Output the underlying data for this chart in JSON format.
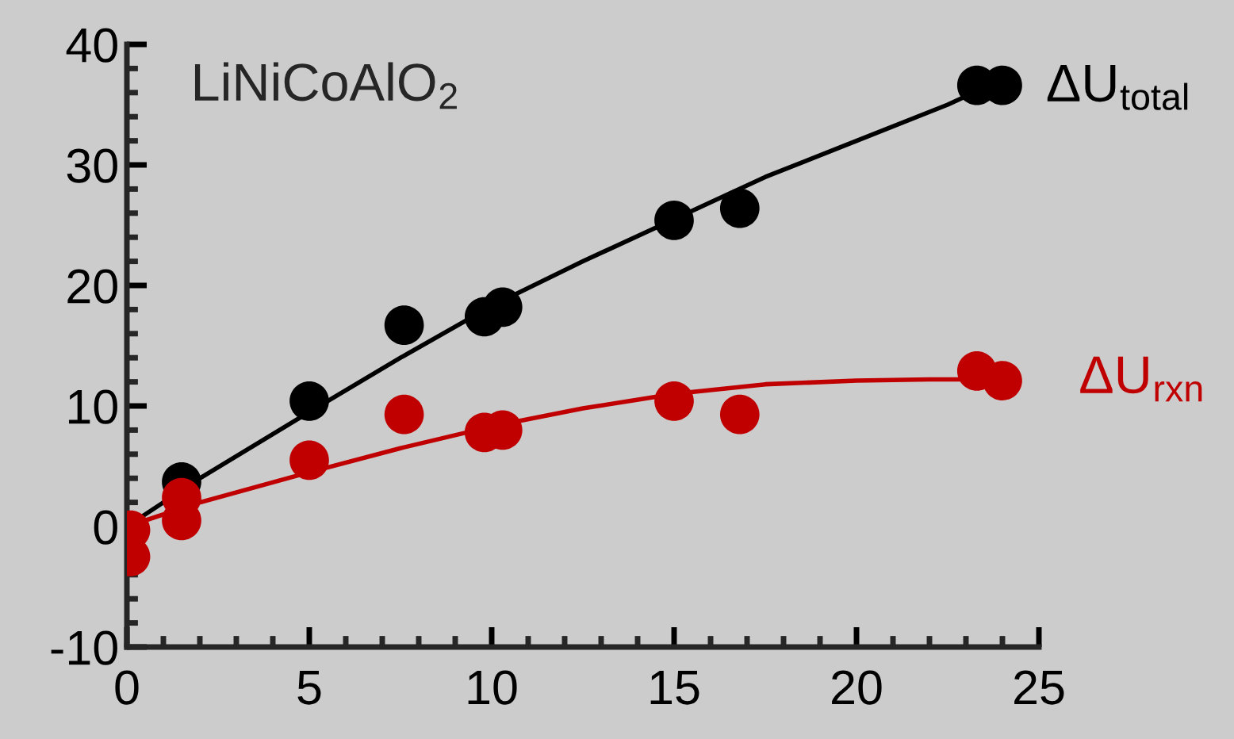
{
  "chart_data": {
    "type": "scatter",
    "title": "LiNiCoAlO$_{2}$",
    "xlim": [
      0,
      25
    ],
    "xticks": [
      0,
      5,
      10,
      15,
      20,
      25
    ],
    "ylim": [
      -10,
      40
    ],
    "yticks": [
      -10,
      0,
      10,
      20,
      30,
      40
    ],
    "marker": "circle",
    "series": [
      {
        "color": "#000000",
        "x": [
          1.5,
          5,
          7.6,
          9.8,
          10.3,
          15,
          16.8,
          23.3,
          24
        ],
        "values": [
          3.7,
          10.4,
          16.7,
          17.4,
          18.2,
          25.4,
          26.4,
          36.6,
          36.6
        ]
      },
      {
        "color": "#c00000",
        "x": [
          0.1,
          0.1,
          1.5,
          1.5,
          5,
          7.6,
          9.8,
          10.3,
          15,
          16.8,
          23.3,
          24
        ],
        "values": [
          -0.3,
          -2.5,
          2.4,
          0.5,
          5.5,
          9.3,
          7.8,
          8.0,
          10.4,
          9.3,
          12.9,
          12.1
        ]
      },
      {
        "type": "line",
        "name": "ΔU$_{total}$",
        "color": "#000000",
        "marker": "none",
        "x": [
          0,
          2,
          5,
          7.5,
          10,
          12.5,
          15,
          17.5,
          20,
          22.5,
          23.5
        ],
        "values": [
          0,
          4,
          9.5,
          14,
          18.3,
          22,
          25.5,
          29,
          32,
          35,
          36.4
        ]
      },
      {
        "type": "line",
        "name": "ΔU$_{rxn}$",
        "color": "#c00000",
        "marker": "none",
        "x": [
          0,
          1.5,
          2,
          5,
          7.5,
          10,
          12.5,
          15,
          17.5,
          20,
          22,
          24.4
        ],
        "values": [
          0,
          1.5,
          2,
          4.5,
          6.5,
          8.3,
          9.8,
          11,
          11.8,
          12.1,
          12.2,
          12.2
        ]
      }
    ]
  }
}
